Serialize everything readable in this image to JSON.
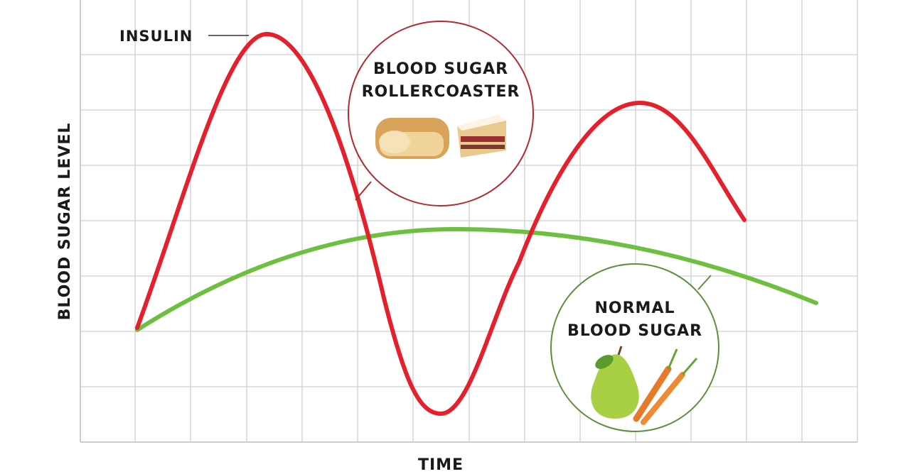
{
  "axes": {
    "y_label": "BLOOD SUGAR LEVEL",
    "x_label": "TIME"
  },
  "labels": {
    "insulin": "INSULIN",
    "rollercoaster": [
      "BLOOD SUGAR",
      "ROLLERCOASTER"
    ],
    "normal": [
      "NORMAL",
      "BLOOD SUGAR"
    ]
  }
}
